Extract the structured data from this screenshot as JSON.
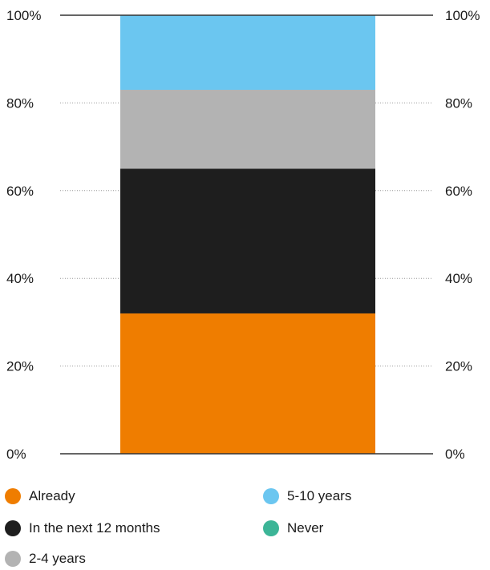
{
  "chart_data": {
    "type": "bar",
    "stacked": true,
    "categories": [
      ""
    ],
    "series": [
      {
        "name": "Already",
        "values": [
          32
        ],
        "color": "#EF7D00"
      },
      {
        "name": "In the next 12 months",
        "values": [
          33
        ],
        "color": "#1E1E1E"
      },
      {
        "name": "2-4 years",
        "values": [
          18
        ],
        "color": "#B3B3B3"
      },
      {
        "name": "5-10 years",
        "values": [
          17
        ],
        "color": "#6BC6F0"
      },
      {
        "name": "Never",
        "values": [
          0
        ],
        "color": "#3CB597"
      }
    ],
    "ylim": [
      0,
      100
    ],
    "yticks": [
      "0%",
      "20%",
      "40%",
      "60%",
      "80%",
      "100%"
    ],
    "ytick_values": [
      0,
      20,
      40,
      60,
      80,
      100
    ],
    "grid": true,
    "legend_position": "bottom",
    "title": "",
    "xlabel": "",
    "ylabel": ""
  }
}
